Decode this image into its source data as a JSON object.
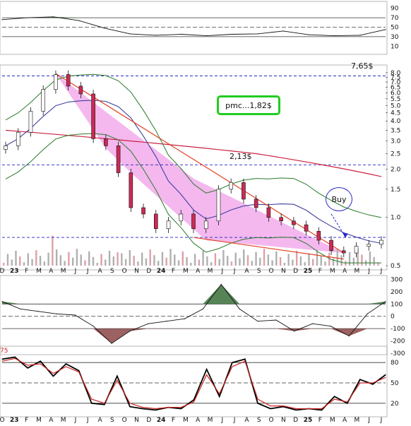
{
  "chart_data": [
    {
      "type": "line",
      "panel": "rsi",
      "y_ticks": [
        90,
        70,
        50,
        30,
        10
      ],
      "ylim": [
        0,
        100
      ],
      "reference_lines": [
        70,
        50,
        30
      ],
      "x": [
        "2023-01",
        "2023-03",
        "2023-05",
        "2023-07",
        "2023-09",
        "2023-11",
        "2024-01",
        "2024-03",
        "2024-05",
        "2024-07",
        "2024-09",
        "2024-11",
        "2025-01",
        "2025-03",
        "2025-05",
        "2025-07"
      ],
      "values": [
        66,
        70,
        72,
        64,
        48,
        36,
        33,
        35,
        32,
        35,
        36,
        42,
        34,
        32,
        33,
        45
      ],
      "fill_above_color": "#3a6e3a",
      "fill_below_color": "#8b4545"
    },
    {
      "type": "candlestick",
      "panel": "price",
      "scale": "log",
      "y_ticks": [
        8.0,
        7.5,
        7.0,
        6.5,
        6.0,
        5.5,
        5.0,
        4.5,
        4.0,
        3.5,
        3.0,
        2.5,
        2.0,
        1.5,
        1.0,
        0.5
      ],
      "ylim": [
        0.5,
        8.5
      ],
      "x_labels": [
        "D",
        "23",
        "F",
        "M",
        "A",
        "M",
        "J",
        "J",
        "A",
        "S",
        "O",
        "N",
        "D",
        "24",
        "F",
        "M",
        "A",
        "M",
        "J",
        "J",
        "A",
        "S",
        "O",
        "N",
        "D",
        "25",
        "F",
        "M",
        "A",
        "M",
        "J",
        "J"
      ],
      "year_labels": [
        "23",
        "24",
        "25"
      ],
      "close": [
        2.8,
        3.4,
        4.6,
        6.3,
        7.8,
        6.6,
        5.9,
        3.1,
        2.8,
        1.9,
        1.15,
        1.05,
        0.85,
        0.95,
        1.05,
        0.85,
        0.95,
        1.5,
        1.65,
        1.3,
        1.15,
        1.0,
        0.95,
        0.9,
        0.82,
        0.72,
        0.62,
        0.6,
        0.66,
        0.68,
        0.72
      ],
      "horizontal_lines": [
        {
          "value": 7.65,
          "label": "7,65$",
          "color": "#2020c0"
        },
        {
          "value": 2.13,
          "label": "2,13$",
          "color": "#2020c0"
        },
        {
          "value": 0.75,
          "label": "",
          "color": "#2020c0"
        }
      ],
      "annotations": {
        "pmc_label": "pmc...1,82$",
        "buy_label": "Buy"
      },
      "colors": {
        "up": "#ffffff",
        "down": "#cc2a55",
        "ma_long": "#cc2040",
        "ma_mid": "#4040a0",
        "bollinger": "#2a7a2a",
        "trendline": "#e04020",
        "wedge_fill": "#f0a0e8",
        "volume": "#b0b0b0"
      }
    },
    {
      "type": "area",
      "panel": "cci",
      "y_ticks": [
        300,
        200,
        100,
        0,
        -100,
        -200,
        -300
      ],
      "ylim": [
        -300,
        320
      ],
      "reference_lines": [
        100,
        0,
        -100
      ],
      "values": [
        120,
        60,
        40,
        20,
        10,
        -80,
        -220,
        -120,
        -60,
        -40,
        -20,
        60,
        260,
        60,
        -40,
        -30,
        -120,
        -60,
        -80,
        -160,
        20,
        120
      ],
      "fill_above_color": "#3a6e3a",
      "fill_below_color": "#8b4545"
    },
    {
      "type": "line",
      "panel": "stochastic",
      "y_label_partial": "75",
      "y_ticks": [
        80,
        50,
        20
      ],
      "ylim": [
        0,
        100
      ],
      "reference_lines": [
        80,
        50,
        20
      ],
      "series": [
        {
          "color": "#000000",
          "values": [
            85,
            88,
            72,
            82,
            60,
            78,
            68,
            20,
            18,
            60,
            15,
            12,
            10,
            14,
            12,
            25,
            70,
            30,
            80,
            85,
            20,
            12,
            15,
            10,
            12,
            10,
            30,
            20,
            55,
            48,
            62
          ]
        },
        {
          "color": "#cc2222",
          "values": [
            82,
            86,
            76,
            78,
            64,
            74,
            66,
            26,
            20,
            54,
            20,
            14,
            12,
            14,
            14,
            22,
            62,
            34,
            74,
            82,
            26,
            16,
            16,
            12,
            12,
            12,
            26,
            22,
            50,
            50,
            58
          ]
        }
      ],
      "x_labels": [
        "O",
        "23",
        "F",
        "M",
        "A",
        "M",
        "J",
        "J",
        "A",
        "S",
        "O",
        "N",
        "D",
        "24",
        "F",
        "M",
        "A",
        "M",
        "J",
        "J",
        "A",
        "S",
        "O",
        "N",
        "D",
        "25",
        "F",
        "M",
        "A",
        "M",
        "J",
        "J"
      ]
    }
  ]
}
